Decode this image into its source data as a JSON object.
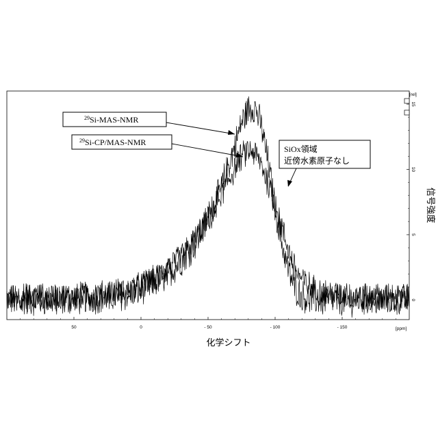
{
  "chart_data": {
    "type": "line",
    "xlabel": "化学シフト",
    "ylabel": "信号強度",
    "x_unit_label": "[ppm]",
    "y_unit_label": "[rel]",
    "x_reversed": true,
    "xlim": [
      100,
      -200
    ],
    "ylim": [
      -1.5,
      16
    ],
    "x_ticks": [
      50,
      0,
      -50,
      -100,
      -150
    ],
    "x_tick_labels": [
      "50",
      "0",
      "- 50",
      "- 100",
      "- 150"
    ],
    "y_ticks": [
      0,
      5,
      10,
      15
    ],
    "y_tick_labels": [
      "0",
      "5",
      "10",
      "15"
    ],
    "grid": false,
    "series": [
      {
        "name": "29Si-MAS-NMR",
        "color": "#000000",
        "x": [
          100,
          60,
          30,
          10,
          0,
          -10,
          -20,
          -30,
          -40,
          -50,
          -60,
          -70,
          -75,
          -80,
          -85,
          -90,
          -95,
          -100,
          -105,
          -110,
          -115,
          -120,
          -130,
          -150,
          -170,
          -200
        ],
        "y": [
          0,
          0,
          0.2,
          0.4,
          0.8,
          1.3,
          2.0,
          3.0,
          4.3,
          6.1,
          8.6,
          11.8,
          13.6,
          14.6,
          14.8,
          13.2,
          10.4,
          7.1,
          4.4,
          2.2,
          0.9,
          0.3,
          0,
          0,
          0,
          0
        ]
      },
      {
        "name": "29Si-CP/MAS-NMR",
        "color": "#000000",
        "x": [
          100,
          60,
          30,
          10,
          0,
          -10,
          -20,
          -30,
          -40,
          -50,
          -60,
          -70,
          -75,
          -80,
          -85,
          -90,
          -95,
          -100,
          -105,
          -110,
          -115,
          -120,
          -130,
          -140,
          -150,
          -170,
          -200
        ],
        "y": [
          0.2,
          0.2,
          0.4,
          0.7,
          1.1,
          1.6,
          2.3,
          3.3,
          4.6,
          6.3,
          8.1,
          10.1,
          11.0,
          11.4,
          11.2,
          10.3,
          8.9,
          7.3,
          5.5,
          3.8,
          2.4,
          1.5,
          0.8,
          0.5,
          0.3,
          0.2,
          0.1
        ]
      }
    ],
    "annotations": [
      {
        "text_sup": "29",
        "text": "Si-MAS-NMR"
      },
      {
        "text_sup": "29",
        "text": "Si-CP/MAS-NMR"
      },
      {
        "lines": [
          "SiOx領域",
          "近傍水素原子なし"
        ]
      }
    ]
  }
}
